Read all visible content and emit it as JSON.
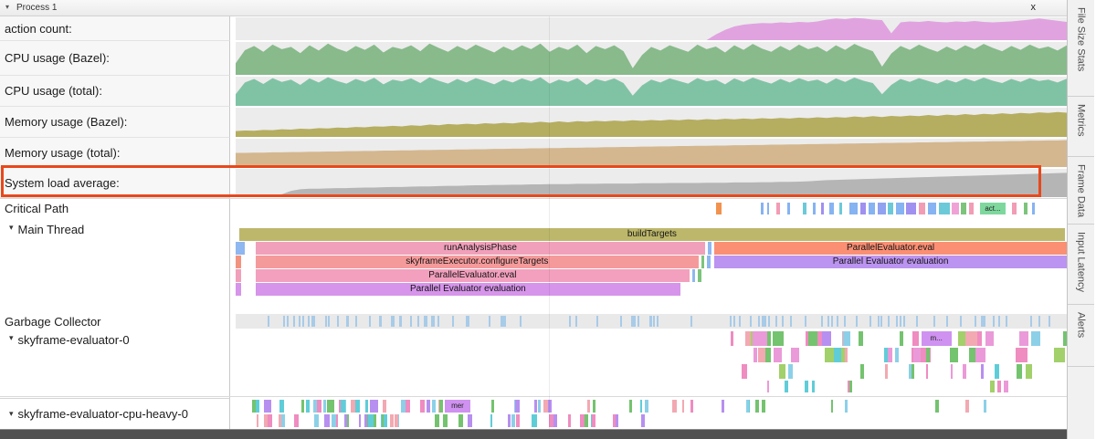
{
  "header": {
    "title": "Process 1",
    "close_label": "x"
  },
  "sidebar_tabs": [
    "File Size Stats",
    "Metrics",
    "Frame Data",
    "Input Latency",
    "Alerts"
  ],
  "highlight_color": "#e8481c",
  "counters": [
    {
      "label": "action count:",
      "color": "#e0a3e0",
      "values": [
        0,
        0,
        0,
        0,
        0,
        0,
        0,
        0,
        0,
        0,
        0,
        0,
        0,
        0,
        0,
        0,
        0,
        0,
        0,
        0,
        0,
        0,
        0,
        0,
        0,
        0,
        0,
        0,
        0,
        0,
        0,
        0,
        0,
        0,
        0,
        0,
        0,
        0,
        0,
        0,
        0,
        0,
        0,
        0,
        0,
        0,
        0,
        0,
        0,
        0,
        0,
        0,
        0.25,
        0.45,
        0.6,
        0.68,
        0.72,
        0.75,
        0.74,
        0.78,
        0.76,
        0.8,
        0.78,
        0.82,
        0.9,
        0.95,
        0.92,
        0.97,
        0.95,
        0.9,
        0.88,
        0.3,
        0.78,
        0.82,
        0.8,
        0.84,
        0.8,
        0.78,
        0.82,
        0.8,
        0.84,
        0.8,
        0.78,
        0.8,
        0.82,
        0.86,
        0.9,
        0.95,
        0.9,
        0.85,
        0.8
      ]
    },
    {
      "label": "CPU usage (Bazel):",
      "color": "#88ba8b",
      "values": [
        0.35,
        0.75,
        0.88,
        0.7,
        0.92,
        0.78,
        0.85,
        0.66,
        0.9,
        0.74,
        0.95,
        0.8,
        0.7,
        0.88,
        0.76,
        0.92,
        0.68,
        0.85,
        0.78,
        0.9,
        0.72,
        0.95,
        0.82,
        0.7,
        0.88,
        0.75,
        0.92,
        0.8,
        0.68,
        0.86,
        0.74,
        0.9,
        0.78,
        0.95,
        0.7,
        0.85,
        0.76,
        0.92,
        0.66,
        0.88,
        0.78,
        0.9,
        0.72,
        0.2,
        0.6,
        0.85,
        0.74,
        0.9,
        0.8,
        0.7,
        0.92,
        0.78,
        0.86,
        0.68,
        0.9,
        0.76,
        0.94,
        0.8,
        0.7,
        0.88,
        0.74,
        0.92,
        0.78,
        0.86,
        0.7,
        0.9,
        0.76,
        0.94,
        0.82,
        0.72,
        0.25,
        0.65,
        0.88,
        0.76,
        0.92,
        0.8,
        0.7,
        0.86,
        0.74,
        0.9,
        0.78,
        0.94,
        0.82,
        0.72,
        0.88,
        0.76,
        0.92,
        0.8,
        0.86,
        0.74,
        0.9
      ]
    },
    {
      "label": "CPU usage (total):",
      "color": "#80c3a4",
      "values": [
        0.4,
        0.8,
        0.92,
        0.75,
        0.95,
        0.82,
        0.9,
        0.72,
        0.94,
        0.8,
        0.98,
        0.85,
        0.76,
        0.92,
        0.82,
        0.96,
        0.74,
        0.9,
        0.84,
        0.94,
        0.78,
        0.98,
        0.86,
        0.76,
        0.92,
        0.8,
        0.95,
        0.85,
        0.74,
        0.9,
        0.8,
        0.94,
        0.84,
        0.98,
        0.76,
        0.9,
        0.82,
        0.95,
        0.72,
        0.92,
        0.84,
        0.94,
        0.78,
        0.35,
        0.7,
        0.9,
        0.8,
        0.94,
        0.85,
        0.76,
        0.95,
        0.84,
        0.9,
        0.74,
        0.94,
        0.82,
        0.97,
        0.86,
        0.76,
        0.92,
        0.8,
        0.95,
        0.84,
        0.9,
        0.76,
        0.94,
        0.82,
        0.97,
        0.86,
        0.78,
        0.4,
        0.72,
        0.92,
        0.82,
        0.95,
        0.85,
        0.76,
        0.9,
        0.8,
        0.94,
        0.84,
        0.97,
        0.86,
        0.78,
        0.92,
        0.82,
        0.95,
        0.85,
        0.9,
        0.8,
        0.93
      ]
    },
    {
      "label": "Memory usage (Bazel):",
      "color": "#b5ad60",
      "values": [
        0.2,
        0.22,
        0.21,
        0.24,
        0.23,
        0.26,
        0.25,
        0.28,
        0.27,
        0.3,
        0.29,
        0.32,
        0.31,
        0.34,
        0.33,
        0.36,
        0.35,
        0.38,
        0.36,
        0.4,
        0.38,
        0.42,
        0.4,
        0.44,
        0.42,
        0.45,
        0.43,
        0.47,
        0.45,
        0.48,
        0.46,
        0.5,
        0.48,
        0.52,
        0.49,
        0.53,
        0.5,
        0.54,
        0.52,
        0.55,
        0.53,
        0.56,
        0.54,
        0.57,
        0.55,
        0.58,
        0.56,
        0.59,
        0.57,
        0.6,
        0.58,
        0.61,
        0.59,
        0.62,
        0.6,
        0.63,
        0.61,
        0.64,
        0.62,
        0.65,
        0.63,
        0.66,
        0.64,
        0.67,
        0.65,
        0.68,
        0.66,
        0.7,
        0.67,
        0.71,
        0.68,
        0.72,
        0.7,
        0.73,
        0.71,
        0.75,
        0.72,
        0.76,
        0.74,
        0.78,
        0.75,
        0.79,
        0.77,
        0.81,
        0.78,
        0.82,
        0.8,
        0.84,
        0.82,
        0.85,
        0.83
      ]
    },
    {
      "label": "Memory usage (total):",
      "color": "#d4b78f",
      "values": [
        0.5,
        0.5,
        0.51,
        0.51,
        0.52,
        0.52,
        0.53,
        0.53,
        0.54,
        0.54,
        0.55,
        0.55,
        0.56,
        0.56,
        0.57,
        0.57,
        0.58,
        0.58,
        0.59,
        0.59,
        0.6,
        0.6,
        0.61,
        0.61,
        0.62,
        0.62,
        0.63,
        0.63,
        0.64,
        0.64,
        0.65,
        0.65,
        0.66,
        0.66,
        0.67,
        0.67,
        0.68,
        0.68,
        0.69,
        0.69,
        0.7,
        0.7,
        0.71,
        0.71,
        0.72,
        0.72,
        0.73,
        0.73,
        0.74,
        0.74,
        0.75,
        0.75,
        0.76,
        0.76,
        0.77,
        0.77,
        0.78,
        0.78,
        0.79,
        0.79,
        0.8,
        0.8,
        0.81,
        0.81,
        0.82,
        0.82,
        0.83,
        0.83,
        0.84,
        0.84,
        0.85,
        0.85,
        0.86,
        0.86,
        0.87,
        0.87,
        0.88,
        0.88,
        0.89,
        0.89,
        0.9,
        0.9,
        0.91,
        0.91,
        0.92,
        0.92,
        0.93,
        0.93,
        0.94,
        0.94,
        0.95
      ]
    },
    {
      "label": "System load average:",
      "color": "#b5b5b5",
      "values": [
        0.06,
        0.06,
        0.07,
        0.07,
        0.08,
        0.1,
        0.22,
        0.28,
        0.3,
        0.3,
        0.31,
        0.32,
        0.32,
        0.33,
        0.34,
        0.34,
        0.35,
        0.36,
        0.36,
        0.37,
        0.38,
        0.38,
        0.39,
        0.4,
        0.4,
        0.41,
        0.42,
        0.42,
        0.43,
        0.43,
        0.44,
        0.44,
        0.45,
        0.45,
        0.46,
        0.46,
        0.46,
        0.47,
        0.47,
        0.47,
        0.48,
        0.48,
        0.48,
        0.48,
        0.49,
        0.49,
        0.49,
        0.5,
        0.5,
        0.5,
        0.5,
        0.51,
        0.51,
        0.51,
        0.52,
        0.52,
        0.52,
        0.53,
        0.53,
        0.54,
        0.54,
        0.55,
        0.56,
        0.58,
        0.6,
        0.61,
        0.62,
        0.63,
        0.64,
        0.65,
        0.66,
        0.67,
        0.68,
        0.69,
        0.7,
        0.71,
        0.72,
        0.73,
        0.74,
        0.75,
        0.76,
        0.77,
        0.78,
        0.79,
        0.8,
        0.81,
        0.82,
        0.83,
        0.84,
        0.85,
        0.86
      ]
    }
  ],
  "critical_path": {
    "label": "Critical Path",
    "segments": [
      {
        "x": 0.578,
        "w": 0.007,
        "c": "#f2924e"
      },
      {
        "x": 0.632,
        "w": 0.003,
        "c": "#86b3f2"
      },
      {
        "x": 0.64,
        "w": 0.002,
        "c": "#86b3f2"
      },
      {
        "x": 0.651,
        "w": 0.004,
        "c": "#f29cb6"
      },
      {
        "x": 0.664,
        "w": 0.003,
        "c": "#86b3f2"
      },
      {
        "x": 0.682,
        "w": 0.005,
        "c": "#6cc9d8"
      },
      {
        "x": 0.695,
        "w": 0.003,
        "c": "#86b3f2"
      },
      {
        "x": 0.704,
        "w": 0.004,
        "c": "#a090f0"
      },
      {
        "x": 0.714,
        "w": 0.006,
        "c": "#86b3f2"
      },
      {
        "x": 0.726,
        "w": 0.004,
        "c": "#6cc9d8"
      },
      {
        "x": 0.738,
        "w": 0.01,
        "c": "#86b3f2"
      },
      {
        "x": 0.752,
        "w": 0.006,
        "c": "#a090f0"
      },
      {
        "x": 0.761,
        "w": 0.008,
        "c": "#86b3f2"
      },
      {
        "x": 0.772,
        "w": 0.01,
        "c": "#90a2f0"
      },
      {
        "x": 0.785,
        "w": 0.006,
        "c": "#6cc9d8"
      },
      {
        "x": 0.794,
        "w": 0.01,
        "c": "#86b3f2"
      },
      {
        "x": 0.807,
        "w": 0.012,
        "c": "#a090f0"
      },
      {
        "x": 0.822,
        "w": 0.008,
        "c": "#f29cb6"
      },
      {
        "x": 0.833,
        "w": 0.01,
        "c": "#86b3f2"
      },
      {
        "x": 0.846,
        "w": 0.013,
        "c": "#6cc9d8"
      },
      {
        "x": 0.862,
        "w": 0.008,
        "c": "#f0a2d6"
      },
      {
        "x": 0.873,
        "w": 0.006,
        "c": "#7cc47c"
      },
      {
        "x": 0.882,
        "w": 0.006,
        "c": "#f29cb6"
      },
      {
        "x": 0.896,
        "w": 0.03,
        "c": "#7ed89e",
        "t": "act..."
      },
      {
        "x": 0.934,
        "w": 0.006,
        "c": "#f29cb6"
      },
      {
        "x": 0.948,
        "w": 0.005,
        "c": "#7cc47c"
      },
      {
        "x": 0.958,
        "w": 0.004,
        "c": "#86b3f2"
      }
    ]
  },
  "main_thread": {
    "label": "Main Thread",
    "rows": [
      [
        {
          "x": 0.004,
          "w": 0.994,
          "c": "#bdb76b",
          "t": "buildTargets"
        }
      ],
      [
        {
          "x": 0.0,
          "w": 0.011,
          "c": "#8fb7f0"
        },
        {
          "x": 0.024,
          "w": 0.541,
          "c": "#f0a0ba",
          "t": "runAnalysisPhase"
        },
        {
          "x": 0.568,
          "w": 0.004,
          "c": "#8fb7f0"
        },
        {
          "x": 0.576,
          "w": 0.424,
          "c": "#fa8f74",
          "t": "ParallelEvaluator.eval"
        }
      ],
      [
        {
          "x": 0.0,
          "w": 0.007,
          "c": "#f2937f"
        },
        {
          "x": 0.024,
          "w": 0.533,
          "c": "#f59a9b",
          "t": "skyframeExecutor.configureTargets"
        },
        {
          "x": 0.56,
          "w": 0.004,
          "c": "#7cc47c"
        },
        {
          "x": 0.567,
          "w": 0.004,
          "c": "#8fb7f0"
        },
        {
          "x": 0.576,
          "w": 0.424,
          "c": "#bb93f0",
          "t": "Parallel Evaluator evaluation"
        }
      ],
      [
        {
          "x": 0.0,
          "w": 0.007,
          "c": "#f0a0ba"
        },
        {
          "x": 0.024,
          "w": 0.522,
          "c": "#f2a0bd",
          "t": "ParallelEvaluator.eval"
        },
        {
          "x": 0.549,
          "w": 0.004,
          "c": "#8fb7f0"
        },
        {
          "x": 0.556,
          "w": 0.004,
          "c": "#7cc47c"
        }
      ],
      [
        {
          "x": 0.0,
          "w": 0.007,
          "c": "#d694ea"
        },
        {
          "x": 0.024,
          "w": 0.511,
          "c": "#d694ea",
          "t": "Parallel Evaluator evaluation"
        }
      ]
    ]
  },
  "gc": {
    "label": "Garbage Collector",
    "color": "#a8cbe8",
    "clusters": [
      {
        "row": 0,
        "start": 0.035,
        "end": 0.33,
        "count": 40,
        "wmin": 2,
        "wmax": 2
      },
      {
        "row": 0,
        "start": 0.34,
        "end": 0.56,
        "count": 14,
        "wmin": 2,
        "wmax": 2
      },
      {
        "row": 0,
        "start": 0.56,
        "end": 0.985,
        "count": 46,
        "wmin": 2,
        "wmax": 2
      }
    ]
  },
  "evaluator0": {
    "label": "skyframe-evaluator-0",
    "palette": [
      "#ef8cc0",
      "#74c36f",
      "#5fcdd8",
      "#b78ff0",
      "#f2a9b2",
      "#8cd0e8",
      "#ea9ad8",
      "#a2d06a"
    ],
    "labeled": [
      {
        "row": 0,
        "x": 0.825,
        "w": 0.036,
        "color": "#cf92f0",
        "text": "m..."
      }
    ],
    "clusters": [
      {
        "row": 0,
        "start": 0.575,
        "end": 0.997,
        "count": 30,
        "wmin": 3,
        "wmax": 14
      },
      {
        "row": 1,
        "start": 0.575,
        "end": 0.99,
        "count": 26,
        "wmin": 3,
        "wmax": 12
      },
      {
        "row": 2,
        "start": 0.6,
        "end": 0.96,
        "count": 15,
        "wmin": 2,
        "wmax": 8
      },
      {
        "row": 3,
        "start": 0.615,
        "end": 0.95,
        "count": 9,
        "wmin": 2,
        "wmax": 5
      }
    ]
  },
  "cpuheavy": {
    "label": "skyframe-evaluator-cpu-heavy-0",
    "palette": [
      "#ef8cc0",
      "#5fcdd8",
      "#b78ff0",
      "#74c36f",
      "#f2a9b2",
      "#8cd0e8"
    ],
    "labeled": [
      {
        "row": 0,
        "x": 0.252,
        "w": 0.03,
        "color": "#cf92f0",
        "text": "mer"
      }
    ],
    "clusters": [
      {
        "row": 0,
        "start": 0.02,
        "end": 0.4,
        "count": 46,
        "wmin": 2,
        "wmax": 6
      },
      {
        "row": 0,
        "start": 0.405,
        "end": 0.635,
        "count": 13,
        "wmin": 2,
        "wmax": 5
      },
      {
        "row": 0,
        "start": 0.66,
        "end": 0.9,
        "count": 5,
        "wmin": 2,
        "wmax": 4
      },
      {
        "row": 1,
        "start": 0.02,
        "end": 0.385,
        "count": 40,
        "wmin": 2,
        "wmax": 6
      },
      {
        "row": 1,
        "start": 0.39,
        "end": 0.57,
        "count": 8,
        "wmin": 2,
        "wmax": 5
      }
    ]
  }
}
